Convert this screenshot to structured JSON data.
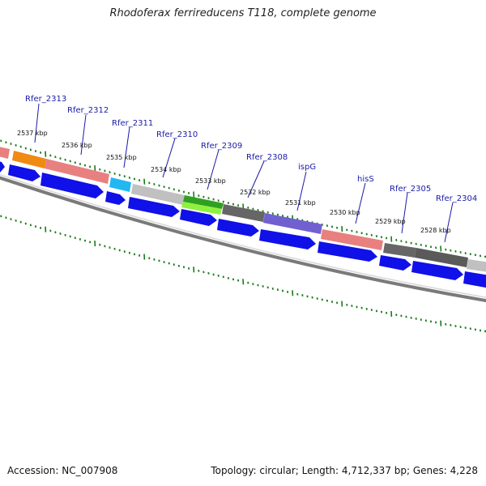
{
  "title": "Rhodoferax ferrireducens T118, complete genome",
  "footer": {
    "accession": "Accession: NC_007908",
    "summary": "Topology: circular; Length: 4,712,337 bp; Genes: 4,228"
  },
  "colors": {
    "cds_blue": "#1010e8",
    "orange": "#f08a10",
    "salmon": "#e88080",
    "cyan": "#20b8f0",
    "light_gray": "#c0c0c0",
    "green": "#30a020",
    "lime": "#90f040",
    "dark_gray": "#666666",
    "purple": "#7060d0",
    "tick_green": "#1a7a1a",
    "backbone": "#777777",
    "label_blue": "#1a1aa8"
  },
  "gene_labels": [
    {
      "id": "rfer2313",
      "text": "Rfer_2313"
    },
    {
      "id": "rfer2312",
      "text": "Rfer_2312"
    },
    {
      "id": "rfer2311",
      "text": "Rfer_2311"
    },
    {
      "id": "rfer2310",
      "text": "Rfer_2310"
    },
    {
      "id": "rfer2309",
      "text": "Rfer_2309"
    },
    {
      "id": "rfer2308",
      "text": "Rfer_2308"
    },
    {
      "id": "ispg",
      "text": "ispG"
    },
    {
      "id": "hiss",
      "text": "hisS"
    },
    {
      "id": "rfer2305",
      "text": "Rfer_2305"
    },
    {
      "id": "rfer2304",
      "text": "Rfer_2304"
    }
  ],
  "kbp_ticks": [
    {
      "id": "k2537",
      "text": "2537 kbp"
    },
    {
      "id": "k2536",
      "text": "2536 kbp"
    },
    {
      "id": "k2535",
      "text": "2535 kbp"
    },
    {
      "id": "k2534",
      "text": "2534 kbp"
    },
    {
      "id": "k2533",
      "text": "2533 kbp"
    },
    {
      "id": "k2532",
      "text": "2532 kbp"
    },
    {
      "id": "k2531",
      "text": "2531 kbp"
    },
    {
      "id": "k2530",
      "text": "2530 kbp"
    },
    {
      "id": "k2529",
      "text": "2529 kbp"
    },
    {
      "id": "k2528",
      "text": "2528 kbp"
    }
  ]
}
